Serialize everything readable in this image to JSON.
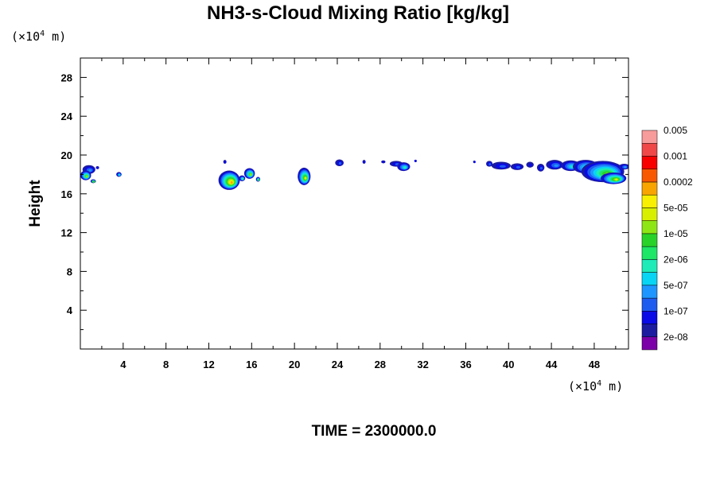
{
  "chart_data": {
    "type": "heatmap",
    "title": "NH3-s-Cloud Mixing Ratio [kg/kg]",
    "ylabel": "Height",
    "x_unit": {
      "prefix": "(×10",
      "exponent": "4",
      "suffix": " m)"
    },
    "y_unit": {
      "prefix": "(×10",
      "exponent": "4",
      "suffix": " m)"
    },
    "footer": "TIME = 2300000.0",
    "xlim": [
      0,
      51.2
    ],
    "ylim": [
      0,
      30
    ],
    "x_ticks": [
      4,
      8,
      12,
      16,
      20,
      24,
      28,
      32,
      36,
      40,
      44,
      48
    ],
    "y_ticks": [
      4,
      8,
      12,
      16,
      20,
      24,
      28
    ],
    "colorbar": {
      "colors": [
        "#7b00a8",
        "#1c1ca0",
        "#0a0ae6",
        "#1e5cf0",
        "#1e96ff",
        "#08d4f4",
        "#1eebb8",
        "#1ee666",
        "#28d228",
        "#8ee614",
        "#d8f000",
        "#f8f000",
        "#f8a500",
        "#f85800",
        "#f80000",
        "#f04848",
        "#f89b9b"
      ],
      "labels": [
        "2e-08",
        "1e-07",
        "5e-07",
        "2e-06",
        "1e-05",
        "5e-05",
        "0.0002",
        "0.001",
        "0.005"
      ],
      "label_bands": [
        1,
        3,
        5,
        7,
        9,
        11,
        13,
        15,
        17
      ]
    },
    "blobs": [
      {
        "x": 0.8,
        "y": 18.5,
        "rx": 0.6,
        "ry": 0.45,
        "max": 4
      },
      {
        "x": 0.5,
        "y": 17.9,
        "rx": 0.5,
        "ry": 0.5,
        "max": 9
      },
      {
        "x": 1.2,
        "y": 17.3,
        "rx": 0.25,
        "ry": 0.2,
        "max": 8
      },
      {
        "x": 1.6,
        "y": 18.7,
        "rx": 0.15,
        "ry": 0.15,
        "max": 2
      },
      {
        "x": 3.6,
        "y": 18.0,
        "rx": 0.25,
        "ry": 0.25,
        "max": 5
      },
      {
        "x": 13.9,
        "y": 17.4,
        "rx": 1.0,
        "ry": 1.0,
        "max": 12
      },
      {
        "x": 13.5,
        "y": 19.3,
        "rx": 0.15,
        "ry": 0.2,
        "max": 2
      },
      {
        "x": 15.8,
        "y": 18.1,
        "rx": 0.5,
        "ry": 0.55,
        "max": 9
      },
      {
        "x": 15.1,
        "y": 17.6,
        "rx": 0.3,
        "ry": 0.3,
        "max": 6
      },
      {
        "x": 16.6,
        "y": 17.5,
        "rx": 0.2,
        "ry": 0.25,
        "max": 7
      },
      {
        "x": 20.9,
        "y": 17.8,
        "rx": 0.6,
        "ry": 0.9,
        "max": 10
      },
      {
        "x": 24.2,
        "y": 19.2,
        "rx": 0.4,
        "ry": 0.35,
        "max": 3
      },
      {
        "x": 26.5,
        "y": 19.3,
        "rx": 0.15,
        "ry": 0.2,
        "max": 2
      },
      {
        "x": 28.3,
        "y": 19.3,
        "rx": 0.2,
        "ry": 0.15,
        "max": 2
      },
      {
        "x": 29.5,
        "y": 19.1,
        "rx": 0.6,
        "ry": 0.3,
        "max": 3
      },
      {
        "x": 30.2,
        "y": 18.8,
        "rx": 0.6,
        "ry": 0.45,
        "max": 6
      },
      {
        "x": 31.3,
        "y": 19.4,
        "rx": 0.1,
        "ry": 0.1,
        "max": 2
      },
      {
        "x": 36.8,
        "y": 19.3,
        "rx": 0.1,
        "ry": 0.1,
        "max": 2
      },
      {
        "x": 38.2,
        "y": 19.1,
        "rx": 0.3,
        "ry": 0.3,
        "max": 3
      },
      {
        "x": 39.3,
        "y": 18.9,
        "rx": 0.9,
        "ry": 0.4,
        "max": 3
      },
      {
        "x": 40.8,
        "y": 18.8,
        "rx": 0.6,
        "ry": 0.35,
        "max": 3
      },
      {
        "x": 42.0,
        "y": 19.0,
        "rx": 0.35,
        "ry": 0.3,
        "max": 2
      },
      {
        "x": 43.0,
        "y": 18.7,
        "rx": 0.35,
        "ry": 0.4,
        "max": 3
      },
      {
        "x": 44.3,
        "y": 19.0,
        "rx": 0.8,
        "ry": 0.5,
        "max": 4
      },
      {
        "x": 45.8,
        "y": 18.9,
        "rx": 0.9,
        "ry": 0.55,
        "max": 6
      },
      {
        "x": 47.2,
        "y": 18.8,
        "rx": 1.2,
        "ry": 0.7,
        "max": 7
      },
      {
        "x": 48.8,
        "y": 18.3,
        "rx": 2.0,
        "ry": 1.1,
        "max": 9
      },
      {
        "x": 49.8,
        "y": 17.6,
        "rx": 1.2,
        "ry": 0.6,
        "max": 10
      },
      {
        "x": 50.8,
        "y": 18.8,
        "rx": 0.5,
        "ry": 0.3,
        "max": 4
      }
    ]
  }
}
